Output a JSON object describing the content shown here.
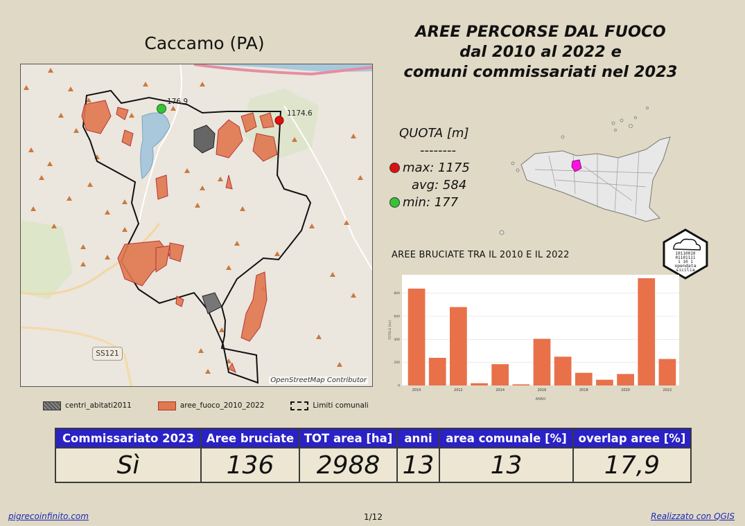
{
  "municipality": "Caccamo (PA)",
  "title_lines": [
    "AREE PERCORSE DAL FUOCO",
    "dal 2010 al 2022 e",
    "comuni commissariati nel 2023"
  ],
  "map": {
    "max_label": "1174.6",
    "min_label": "176.9",
    "road_label": "SS121",
    "attribution": "OpenStreetMap Contributor",
    "colors": {
      "fire_fill": "#e07850",
      "fire_stroke": "#b02020",
      "border": "#111111",
      "lake": "#a9c8dc"
    }
  },
  "legend": {
    "centri": "centri_abitati2011",
    "fuoco": "aree_fuoco_2010_2022",
    "limiti": "Limiti comunali"
  },
  "quota": {
    "title": "QUOTA [m]",
    "separator": "--------",
    "max": "max: 1175",
    "avg": "avg: 584",
    "min": "min: 177"
  },
  "logo_text": [
    "opendata",
    "sicilia"
  ],
  "chart_title": "AREE BRUCIATE TRA IL 2010 E IL 2022",
  "chart_data": {
    "type": "bar",
    "categories": [
      "2010",
      "2011",
      "2012",
      "2013",
      "2014",
      "2015",
      "2016",
      "2017",
      "2018",
      "2019",
      "2020",
      "2021",
      "2022"
    ],
    "values": [
      840,
      240,
      680,
      20,
      185,
      10,
      405,
      250,
      110,
      50,
      100,
      930,
      230
    ],
    "x_tick_labels": [
      "2010",
      "2012",
      "2014",
      "2016",
      "2018",
      "2020",
      "2022"
    ],
    "y_tick_labels": [
      "0",
      "200",
      "400",
      "600",
      "800"
    ],
    "ylim": [
      0,
      960
    ],
    "xlabel": "ANNO",
    "ylabel": "TOTALE [ha]",
    "bar_color": "#e8714a",
    "grid": true
  },
  "table": {
    "headers": [
      "Commissariato 2023",
      "Aree bruciate",
      "TOT area [ha]",
      "anni",
      "area comunale [%]",
      "overlap aree [%]"
    ],
    "values": [
      "Sì",
      "136",
      "2988",
      "13",
      "13",
      "17,9"
    ]
  },
  "footer": {
    "left": "pigrecoinfinito.com",
    "page": "1/12",
    "right": "Realizzato con QGIS"
  }
}
